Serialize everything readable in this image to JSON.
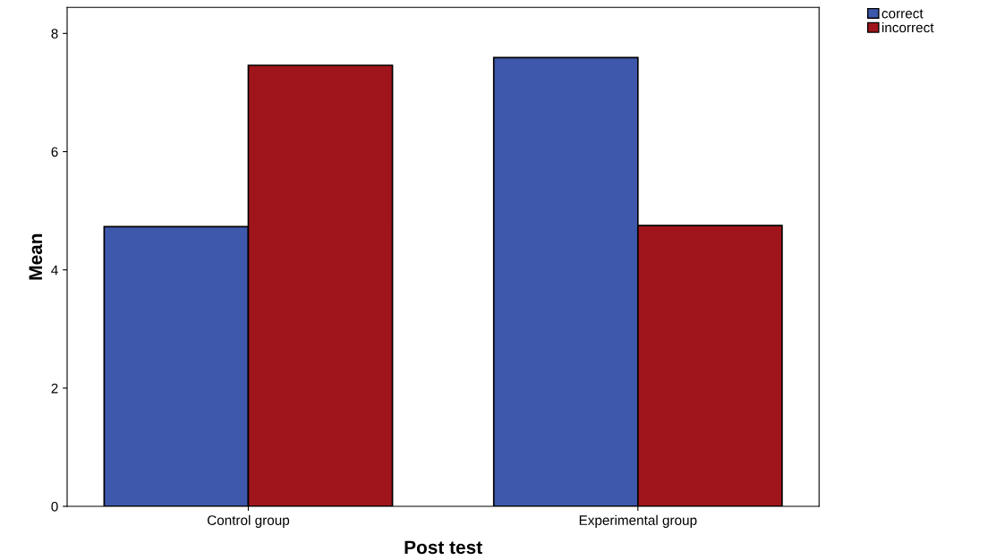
{
  "chart_data": {
    "type": "bar",
    "xlabel": "Post test",
    "ylabel": "Mean",
    "categories": [
      "Control group",
      "Experimental group"
    ],
    "series": [
      {
        "name": "correct",
        "color": "#3e58ac",
        "values": [
          4.73,
          7.59
        ]
      },
      {
        "name": "incorrect",
        "color": "#a0151b",
        "values": [
          7.46,
          4.75
        ]
      }
    ],
    "ylim": [
      0,
      8.44
    ],
    "yticks": [
      0,
      2,
      4,
      6,
      8
    ],
    "grid": false,
    "legend": "top right"
  }
}
